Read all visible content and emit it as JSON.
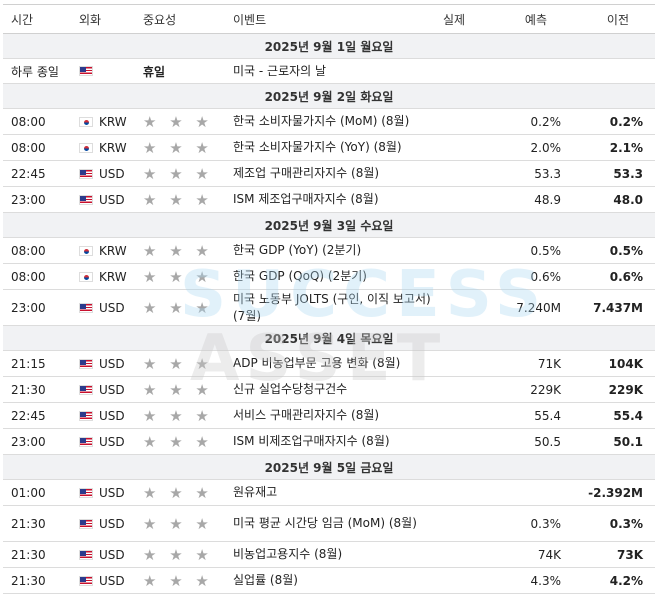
{
  "headers": {
    "time": "시간",
    "currency": "외화",
    "importance": "중요성",
    "event": "이벤트",
    "actual": "실제",
    "forecast": "예측",
    "previous": "이전"
  },
  "watermark": {
    "line1": "SUCCESS",
    "line2": "ASSET"
  },
  "stars_glyph": "★ ★ ★",
  "days": [
    {
      "date": "2025년 9월 1일 월요일",
      "rows": [
        {
          "time": "하루 종일",
          "flag": "us",
          "currency": "",
          "importance": "휴일",
          "event": "미국 - 근로자의 날",
          "actual": "",
          "forecast": "",
          "previous": "",
          "holiday": true
        }
      ]
    },
    {
      "date": "2025년 9월 2일 화요일",
      "rows": [
        {
          "time": "08:00",
          "flag": "kr",
          "currency": "KRW",
          "event": "한국 소비자물가지수 (MoM) (8월)",
          "actual": "",
          "forecast": "0.2%",
          "previous": "0.2%"
        },
        {
          "time": "08:00",
          "flag": "kr",
          "currency": "KRW",
          "event": "한국 소비자물가지수 (YoY) (8월)",
          "actual": "",
          "forecast": "2.0%",
          "previous": "2.1%"
        },
        {
          "time": "22:45",
          "flag": "us",
          "currency": "USD",
          "event": "제조업 구매관리자지수 (8월)",
          "actual": "",
          "forecast": "53.3",
          "previous": "53.3"
        },
        {
          "time": "23:00",
          "flag": "us",
          "currency": "USD",
          "event": "ISM 제조업구매자지수 (8월)",
          "actual": "",
          "forecast": "48.9",
          "previous": "48.0"
        }
      ]
    },
    {
      "date": "2025년 9월 3일 수요일",
      "rows": [
        {
          "time": "08:00",
          "flag": "kr",
          "currency": "KRW",
          "event": "한국 GDP (YoY) (2분기)",
          "actual": "",
          "forecast": "0.5%",
          "previous": "0.5%"
        },
        {
          "time": "08:00",
          "flag": "kr",
          "currency": "KRW",
          "event": "한국 GDP (QoQ) (2분기)",
          "actual": "",
          "forecast": "0.6%",
          "previous": "0.6%"
        },
        {
          "time": "23:00",
          "flag": "us",
          "currency": "USD",
          "event": "미국 노동부 JOLTS (구인, 이직 보고서) (7월)",
          "actual": "",
          "forecast": "7.240M",
          "previous": "7.437M",
          "tall": true
        }
      ]
    },
    {
      "date": "2025년 9월 4일 목요일",
      "rows": [
        {
          "time": "21:15",
          "flag": "us",
          "currency": "USD",
          "event": "ADP 비농업부문 고용 변화 (8월)",
          "actual": "",
          "forecast": "71K",
          "previous": "104K"
        },
        {
          "time": "21:30",
          "flag": "us",
          "currency": "USD",
          "event": "신규 실업수당청구건수",
          "actual": "",
          "forecast": "229K",
          "previous": "229K"
        },
        {
          "time": "22:45",
          "flag": "us",
          "currency": "USD",
          "event": "서비스 구매관리자지수 (8월)",
          "actual": "",
          "forecast": "55.4",
          "previous": "55.4"
        },
        {
          "time": "23:00",
          "flag": "us",
          "currency": "USD",
          "event": "ISM 비제조업구매자지수 (8월)",
          "actual": "",
          "forecast": "50.5",
          "previous": "50.1"
        }
      ]
    },
    {
      "date": "2025년 9월 5일 금요일",
      "rows": [
        {
          "time": "01:00",
          "flag": "us",
          "currency": "USD",
          "event": "원유재고",
          "actual": "",
          "forecast": "",
          "previous": "-2.392M"
        },
        {
          "time": "21:30",
          "flag": "us",
          "currency": "USD",
          "event": "미국 평균 시간당 임금 (MoM) (8월)",
          "actual": "",
          "forecast": "0.3%",
          "previous": "0.3%",
          "tall": true
        },
        {
          "time": "21:30",
          "flag": "us",
          "currency": "USD",
          "event": "비농업고용지수 (8월)",
          "actual": "",
          "forecast": "74K",
          "previous": "73K"
        },
        {
          "time": "21:30",
          "flag": "us",
          "currency": "USD",
          "event": "실업률 (8월)",
          "actual": "",
          "forecast": "4.3%",
          "previous": "4.2%"
        }
      ]
    }
  ]
}
